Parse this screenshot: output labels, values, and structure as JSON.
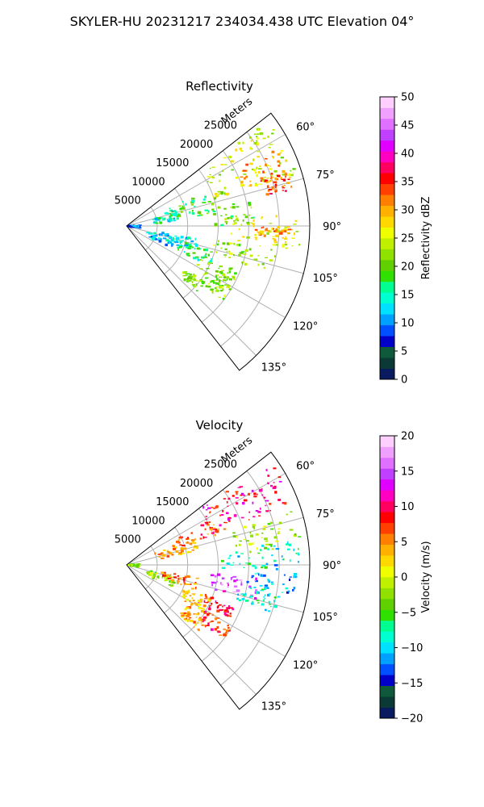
{
  "figure": {
    "title": "SKYLER-HU  20231217  234034.438 UTC Elevation 04°"
  },
  "chart_data": [
    {
      "type": "heatmap",
      "title": "Reflectivity",
      "radial_label": "Meters",
      "radial_ticks": [
        5000,
        10000,
        15000,
        20000,
        25000
      ],
      "radial_tick_labels": [
        "5000",
        "10000",
        "15000",
        "20000",
        "25000"
      ],
      "radial_range": [
        0,
        30000
      ],
      "azimuth_range_deg": [
        52,
        142
      ],
      "azimuth_ticks": [
        60,
        75,
        90,
        105,
        120,
        135
      ],
      "azimuth_tick_labels": [
        "60°",
        "75°",
        "90°",
        "105°",
        "120°",
        "135°"
      ],
      "grid": true,
      "colorbar": {
        "label": "Reflectivity dBZ",
        "range": [
          0,
          50
        ],
        "ticks": [
          0,
          5,
          10,
          15,
          20,
          25,
          30,
          35,
          40,
          45,
          50
        ],
        "tick_labels": [
          "0",
          "5",
          "10",
          "15",
          "20",
          "25",
          "30",
          "35",
          "40",
          "45",
          "50"
        ],
        "colors": [
          "#0a1a5e",
          "#0b3a36",
          "#0e5a3a",
          "#0000c8",
          "#0050ff",
          "#00a0ff",
          "#00e0ff",
          "#00ffd0",
          "#00ff90",
          "#30e000",
          "#60d000",
          "#90e000",
          "#c0f000",
          "#f0ff00",
          "#ffd800",
          "#ffb000",
          "#ff8000",
          "#ff4000",
          "#ff0000",
          "#ff0060",
          "#ff00c0",
          "#e000ff",
          "#c040ff",
          "#e070ff",
          "#f0a0ff",
          "#ffd0ff"
        ]
      },
      "echo_regions": [
        {
          "az": [
            53,
            73
          ],
          "r": [
            15000,
            29000
          ],
          "value": 24
        },
        {
          "az": [
            63,
            73
          ],
          "r": [
            20000,
            28500
          ],
          "value": 30
        },
        {
          "az": [
            70,
            78
          ],
          "r": [
            23000,
            28000
          ],
          "value": 33
        },
        {
          "az": [
            66,
            82
          ],
          "r": [
            7000,
            15000
          ],
          "value": 18
        },
        {
          "az": [
            72,
            86
          ],
          "r": [
            4500,
            8500
          ],
          "value": 14
        },
        {
          "az": [
            78,
            90
          ],
          "r": [
            14000,
            21000
          ],
          "value": 21
        },
        {
          "az": [
            86,
            98
          ],
          "r": [
            17000,
            28500
          ],
          "value": 25
        },
        {
          "az": [
            90,
            96
          ],
          "r": [
            21000,
            27000
          ],
          "value": 31
        },
        {
          "az": [
            98,
            108
          ],
          "r": [
            14000,
            25000
          ],
          "value": 22
        },
        {
          "az": [
            86,
            100
          ],
          "r": [
            200,
            2200
          ],
          "value": 10
        },
        {
          "az": [
            104,
            116
          ],
          "r": [
            3500,
            9000
          ],
          "value": 12
        },
        {
          "az": [
            100,
            110
          ],
          "r": [
            6000,
            12000
          ],
          "value": 13
        },
        {
          "az": [
            112,
            120
          ],
          "r": [
            13000,
            20000
          ],
          "value": 21
        },
        {
          "az": [
            120,
            128
          ],
          "r": [
            15000,
            20000
          ],
          "value": 22
        },
        {
          "az": [
            126,
            133
          ],
          "r": [
            12000,
            16000
          ],
          "value": 21
        },
        {
          "az": [
            106,
            116
          ],
          "r": [
            9000,
            15000
          ],
          "value": 17
        }
      ]
    },
    {
      "type": "heatmap",
      "title": "Velocity",
      "radial_label": "Meters",
      "radial_ticks": [
        5000,
        10000,
        15000,
        20000,
        25000
      ],
      "radial_tick_labels": [
        "5000",
        "10000",
        "15000",
        "20000",
        "25000"
      ],
      "radial_range": [
        0,
        30000
      ],
      "azimuth_range_deg": [
        52,
        142
      ],
      "azimuth_ticks": [
        60,
        75,
        90,
        105,
        120,
        135
      ],
      "azimuth_tick_labels": [
        "60°",
        "75°",
        "90°",
        "105°",
        "120°",
        "135°"
      ],
      "grid": true,
      "colorbar": {
        "label": "Velocity (m/s)",
        "range": [
          -20,
          20
        ],
        "ticks": [
          -20,
          -15,
          -10,
          -5,
          0,
          5,
          10,
          15,
          20
        ],
        "tick_labels": [
          "−20",
          "−15",
          "−10",
          "−5",
          "0",
          "5",
          "10",
          "15",
          "20"
        ],
        "colors": [
          "#0a1a5e",
          "#0b3a36",
          "#0e5a3a",
          "#0000c8",
          "#0050ff",
          "#00a0ff",
          "#00e0ff",
          "#00ffd0",
          "#00ff90",
          "#30e000",
          "#60d000",
          "#90e000",
          "#c0f000",
          "#f0ff00",
          "#ffd800",
          "#ffb000",
          "#ff8000",
          "#ff4000",
          "#ff0000",
          "#ff0060",
          "#ff00c0",
          "#e000ff",
          "#c040ff",
          "#e070ff",
          "#f0a0ff",
          "#ffd0ff"
        ]
      },
      "echo_regions": [
        {
          "az": [
            53,
            70
          ],
          "r": [
            15000,
            29000
          ],
          "value": 10
        },
        {
          "az": [
            60,
            72
          ],
          "r": [
            9000,
            18000
          ],
          "value": 7
        },
        {
          "az": [
            68,
            80
          ],
          "r": [
            5000,
            12000
          ],
          "value": 4
        },
        {
          "az": [
            72,
            84
          ],
          "r": [
            18000,
            29000
          ],
          "value": -2
        },
        {
          "az": [
            82,
            92
          ],
          "r": [
            15000,
            28500
          ],
          "value": -8
        },
        {
          "az": [
            90,
            100
          ],
          "r": [
            20000,
            28500
          ],
          "value": -11
        },
        {
          "az": [
            96,
            106
          ],
          "r": [
            14000,
            22000
          ],
          "value": 15
        },
        {
          "az": [
            100,
            108
          ],
          "r": [
            18000,
            26000
          ],
          "value": -8
        },
        {
          "az": [
            86,
            100
          ],
          "r": [
            200,
            2200
          ],
          "value": -2
        },
        {
          "az": [
            104,
            116
          ],
          "r": [
            3500,
            9000
          ],
          "value": -2
        },
        {
          "az": [
            100,
            110
          ],
          "r": [
            6000,
            12000
          ],
          "value": 6
        },
        {
          "az": [
            110,
            118
          ],
          "r": [
            13000,
            19000
          ],
          "value": 9
        },
        {
          "az": [
            112,
            122
          ],
          "r": [
            10000,
            15000
          ],
          "value": 3
        },
        {
          "az": [
            120,
            128
          ],
          "r": [
            15000,
            20000
          ],
          "value": 8
        },
        {
          "az": [
            124,
            133
          ],
          "r": [
            12000,
            16000
          ],
          "value": 4
        }
      ]
    }
  ]
}
